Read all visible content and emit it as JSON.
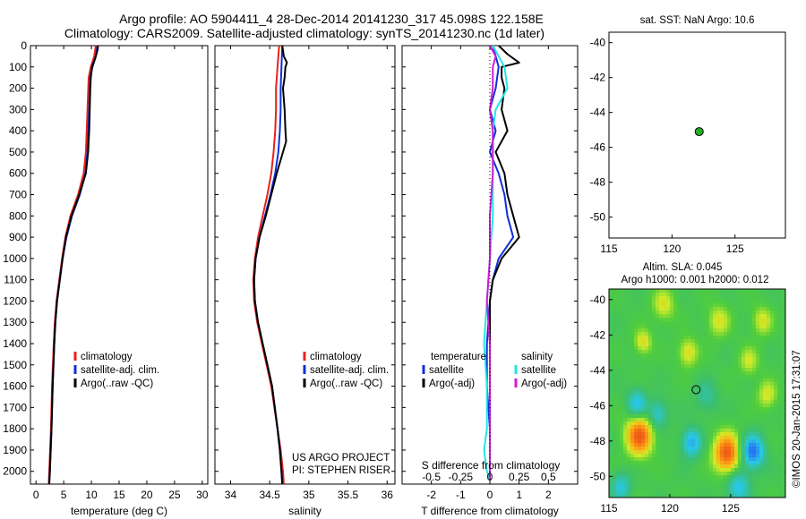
{
  "figure": {
    "title_line1": "Argo profile: AO 5904411_4 28-Dec-2014 20141230_317 45.098S 122.158E",
    "title_line2": "Climatology: CARS2009. Satellite-adjusted climatology: synTS_20141230.nc (1d later)",
    "footer_stamp": "©IMOS 20-Jan-2015 17:31:07",
    "project_line1": "US ARGO PROJECT",
    "project_line2": "PI: STEPHEN RISER"
  },
  "colors": {
    "climatology": "#e8221b",
    "satellite": "#1030d8",
    "argo": "#000000",
    "sal_satellite": "#22e6e6",
    "sal_argo": "#d21ad2",
    "marker": "#22b022"
  },
  "chart_data": [
    {
      "id": "temperature",
      "type": "line",
      "xlabel": "temperature (deg C)",
      "ylabel": "",
      "xlim": [
        -1,
        31
      ],
      "ylim": [
        2060,
        0
      ],
      "xticks": [
        0,
        5,
        10,
        15,
        20,
        25,
        30
      ],
      "xtick_labels": [
        "0",
        "5",
        "10",
        "15",
        "20",
        "25",
        "30"
      ],
      "yticks": [
        0,
        100,
        200,
        300,
        400,
        500,
        600,
        700,
        800,
        900,
        1000,
        1100,
        1200,
        1300,
        1400,
        1500,
        1600,
        1700,
        1800,
        1900,
        2000
      ],
      "ytick_labels": [
        "0",
        "100",
        "200",
        "300",
        "400",
        "500",
        "600",
        "700",
        "800",
        "900",
        "1000",
        "1100",
        "1200",
        "1300",
        "1400",
        "1500",
        "1600",
        "1700",
        "1800",
        "1900",
        "2000"
      ],
      "legend": [
        "climatology",
        "satellite-adj. clim.",
        "Argo(..raw -QC)"
      ],
      "series": [
        {
          "name": "climatology",
          "color_key": "climatology",
          "depth": [
            0,
            50,
            100,
            150,
            300,
            500,
            600,
            700,
            800,
            900,
            1000,
            1100,
            1200,
            1300,
            1400,
            1600,
            1800,
            2000,
            2060
          ],
          "values": [
            10.8,
            10.5,
            9.9,
            9.5,
            9.3,
            9.0,
            8.6,
            7.6,
            6.2,
            5.3,
            4.7,
            4.2,
            3.7,
            3.4,
            3.2,
            2.9,
            2.7,
            2.4,
            2.3
          ]
        },
        {
          "name": "satellite-adj. clim.",
          "color_key": "satellite",
          "depth": [
            0,
            50,
            100,
            150,
            300,
            500,
            600,
            700,
            800,
            900,
            1000,
            1100,
            1200,
            1300,
            1400,
            1600,
            1800,
            2000,
            2060
          ],
          "values": [
            11.1,
            10.8,
            10.2,
            9.8,
            9.6,
            9.3,
            8.9,
            7.9,
            6.5,
            5.5,
            4.8,
            4.3,
            3.8,
            3.5,
            3.3,
            3.0,
            2.8,
            2.5,
            2.4
          ]
        },
        {
          "name": "Argo(..raw -QC)",
          "color_key": "argo",
          "depth": [
            0,
            20,
            50,
            80,
            100,
            150,
            200,
            300,
            400,
            500,
            600,
            700,
            800,
            900,
            1000,
            1100,
            1200,
            1300,
            1400,
            1600,
            1800,
            2000,
            2060
          ],
          "values": [
            11.2,
            11.1,
            10.8,
            10.4,
            10.1,
            9.9,
            9.8,
            9.7,
            9.6,
            9.4,
            9.0,
            7.8,
            6.4,
            5.4,
            4.8,
            4.3,
            3.8,
            3.5,
            3.3,
            3.0,
            2.8,
            2.5,
            2.4
          ]
        }
      ]
    },
    {
      "id": "salinity",
      "type": "line",
      "xlabel": "salinity",
      "ylabel": "",
      "xlim": [
        33.8,
        36.1
      ],
      "ylim": [
        2060,
        0
      ],
      "xticks": [
        34,
        34.5,
        35,
        35.5,
        36
      ],
      "xtick_labels": [
        "34",
        "34.5",
        "35",
        "35.5",
        "36"
      ],
      "legend": [
        "climatology",
        "satellite-adj. clim.",
        "Argo(..raw -QC)"
      ],
      "series": [
        {
          "name": "climatology",
          "color_key": "climatology",
          "depth": [
            0,
            100,
            200,
            300,
            400,
            500,
            600,
            700,
            800,
            900,
            1000,
            1100,
            1200,
            1300,
            1400,
            1500,
            1600,
            1800,
            1900,
            2000,
            2060
          ],
          "values": [
            34.62,
            34.6,
            34.58,
            34.58,
            34.57,
            34.55,
            34.52,
            34.47,
            34.41,
            34.35,
            34.31,
            34.29,
            34.3,
            34.34,
            34.4,
            34.46,
            34.52,
            34.6,
            34.64,
            34.67,
            34.68
          ]
        },
        {
          "name": "satellite-adj. clim.",
          "color_key": "satellite",
          "depth": [
            0,
            100,
            200,
            300,
            400,
            500,
            600,
            700,
            800,
            900,
            1000,
            1100,
            1200,
            1300,
            1400,
            1500,
            1600,
            1800,
            1900,
            2000,
            2060
          ],
          "values": [
            34.66,
            34.65,
            34.64,
            34.64,
            34.63,
            34.61,
            34.57,
            34.51,
            34.44,
            34.37,
            34.32,
            34.3,
            34.31,
            34.35,
            34.41,
            34.47,
            34.53,
            34.6,
            34.63,
            34.65,
            34.66
          ]
        },
        {
          "name": "Argo(..raw -QC)",
          "color_key": "argo",
          "depth": [
            0,
            50,
            80,
            100,
            150,
            200,
            250,
            300,
            400,
            450,
            500,
            600,
            700,
            800,
            900,
            1000,
            1100,
            1200,
            1300,
            1400,
            1500,
            1600,
            1800,
            1900,
            2000,
            2060
          ],
          "values": [
            34.66,
            34.68,
            34.72,
            34.7,
            34.69,
            34.67,
            34.68,
            34.69,
            34.7,
            34.71,
            34.67,
            34.59,
            34.52,
            34.45,
            34.37,
            34.32,
            34.3,
            34.31,
            34.35,
            34.41,
            34.47,
            34.53,
            34.6,
            34.63,
            34.65,
            34.66
          ]
        }
      ]
    },
    {
      "id": "difference",
      "type": "line",
      "xlabel": "T difference from climatology",
      "top_xlabel": "S difference from climatology",
      "xlim": [
        -3,
        3
      ],
      "ylim": [
        2060,
        0
      ],
      "xticks": [
        -2,
        -1,
        0,
        1,
        2
      ],
      "xtick_labels": [
        "-2",
        "-1",
        "0",
        "1",
        "2"
      ],
      "s_xticks": [
        -2,
        -1,
        0,
        1,
        2
      ],
      "s_xtick_labels": [
        "-0.5",
        "-0.25",
        "0",
        "0.25",
        "0.5"
      ],
      "legend_temperature_header": "temperature",
      "legend_salinity_header": "salinity",
      "legend_temperature": [
        "satellite",
        "Argo(-adj)"
      ],
      "legend_salinity": [
        "satellite",
        "Argo(-adj)"
      ],
      "series": [
        {
          "name": "satellite",
          "group": "temperature",
          "color_key": "satellite",
          "depth": [
            0,
            50,
            100,
            200,
            300,
            400,
            500,
            600,
            700,
            800,
            900,
            1000,
            1100,
            1200,
            1400,
            1600,
            1800,
            2000,
            2040
          ],
          "values": [
            0.1,
            0.2,
            0.3,
            0.2,
            0.0,
            0.2,
            0.0,
            0.3,
            0.5,
            0.6,
            0.8,
            0.3,
            0.1,
            0.0,
            -0.1,
            -0.1,
            0.0,
            0.0,
            0.0
          ]
        },
        {
          "name": "Argo(-adj)",
          "group": "temperature",
          "color_key": "argo",
          "depth": [
            0,
            40,
            80,
            100,
            150,
            200,
            300,
            400,
            500,
            600,
            700,
            800,
            900,
            1000,
            1100,
            1200,
            1400,
            1600,
            1800,
            2000,
            2040
          ],
          "values": [
            0.3,
            0.6,
            1.0,
            0.4,
            0.4,
            0.5,
            0.4,
            0.6,
            0.2,
            0.5,
            0.6,
            0.8,
            1.0,
            0.4,
            0.1,
            0.0,
            0.0,
            0.0,
            0.0,
            0.0,
            0.0
          ]
        },
        {
          "name": "satellite",
          "group": "salinity",
          "color_key": "sal_satellite",
          "depth": [
            0,
            50,
            100,
            200,
            300,
            400,
            600,
            800,
            1000,
            1200,
            1400,
            1600,
            1800,
            1900,
            2000,
            2040
          ],
          "values": [
            0.1,
            0.3,
            0.5,
            0.6,
            0.2,
            0.1,
            0.1,
            0.1,
            0.0,
            -0.1,
            -0.2,
            -0.1,
            -0.1,
            -0.2,
            -0.1,
            0.0
          ]
        },
        {
          "name": "Argo(-adj)",
          "group": "salinity",
          "color_key": "sal_argo",
          "depth": [
            0,
            50,
            100,
            200,
            300,
            400,
            600,
            800,
            1000,
            1200,
            1400,
            1600,
            1800,
            2000,
            2040
          ],
          "values": [
            0.0,
            0.2,
            0.1,
            0.1,
            0.0,
            0.1,
            0.1,
            0.0,
            0.0,
            -0.1,
            0.0,
            0.0,
            0.0,
            0.0,
            0.0
          ]
        }
      ]
    },
    {
      "id": "sst_map",
      "type": "scatter",
      "title": "sat. SST: NaN Argo: 10.6",
      "xlim": [
        115,
        129
      ],
      "ylim": [
        -51.2,
        -39.4
      ],
      "xticks": [
        115,
        120,
        125
      ],
      "xtick_labels": [
        "115",
        "120",
        "125"
      ],
      "yticks": [
        -40,
        -42,
        -44,
        -46,
        -48,
        -50
      ],
      "ytick_labels": [
        "-40",
        "-42",
        "-44",
        "-46",
        "-48",
        "-50"
      ],
      "points": [
        {
          "x": 122.158,
          "y": -45.098
        }
      ]
    },
    {
      "id": "sla_map",
      "type": "heatmap",
      "title_line1": "Altim. SLA: 0.045",
      "title_line2": "Argo h1000: 0.001 h2000: 0.012",
      "xlim": [
        115,
        129.5
      ],
      "ylim": [
        -51.2,
        -39.4
      ],
      "xticks": [
        115,
        120,
        125
      ],
      "xtick_labels": [
        "115",
        "120",
        "125"
      ],
      "yticks": [
        -40,
        -42,
        -44,
        -46,
        -48,
        -50
      ],
      "ytick_labels": [
        "-40",
        "-42",
        "-44",
        "-46",
        "-48",
        "-50"
      ],
      "points": [
        {
          "x": 122.158,
          "y": -45.098
        }
      ]
    }
  ]
}
